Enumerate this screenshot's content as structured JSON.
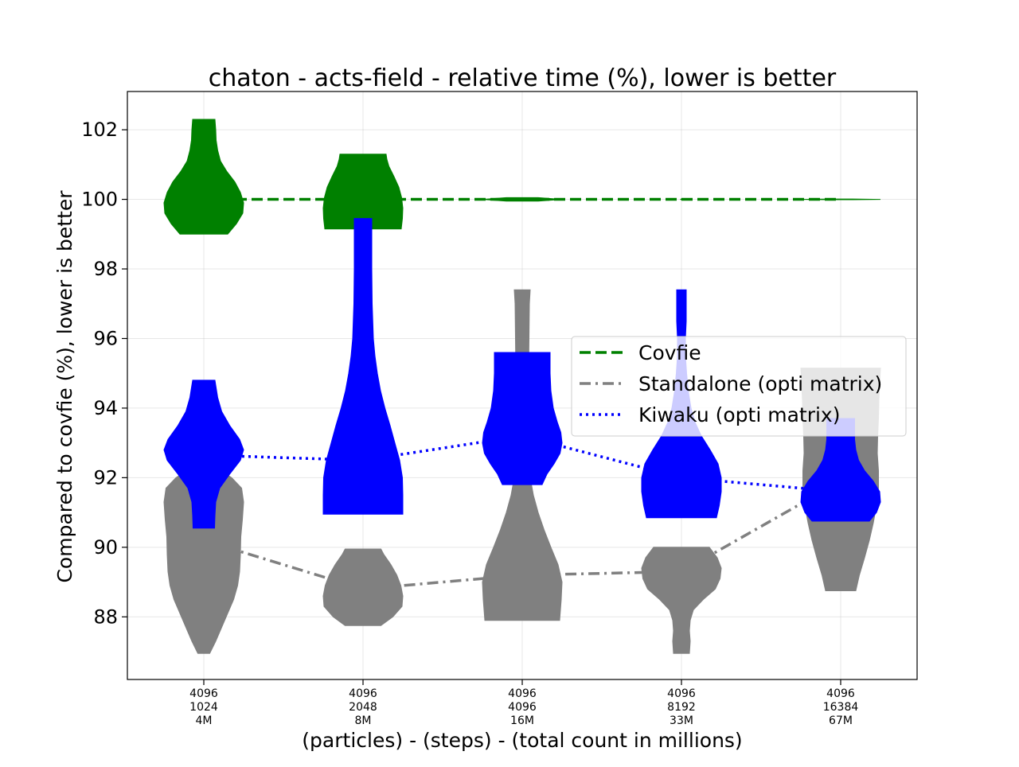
{
  "chart_data": {
    "type": "violin",
    "title": "chaton - acts-field - relative time (%), lower is better",
    "xlabel": "(particles) - (steps) - (total count in millions)",
    "ylabel": "Compared to covfie (%), lower is better",
    "ylim": [
      86.2,
      103.1
    ],
    "yticks": [
      88,
      90,
      92,
      94,
      96,
      98,
      100,
      102
    ],
    "grid": true,
    "legend_position": "center-right",
    "categories": [
      [
        "4096",
        "1024",
        "4M"
      ],
      [
        "4096",
        "2048",
        "8M"
      ],
      [
        "4096",
        "4096",
        "16M"
      ],
      [
        "4096",
        "8192",
        "33M"
      ],
      [
        "4096",
        "16384",
        "67M"
      ]
    ],
    "series": [
      {
        "name": "Covfie",
        "color": "#008000",
        "line_style": "dashed",
        "line_values": [
          100,
          100,
          100,
          100,
          100
        ],
        "violins": [
          {
            "min": 99.0,
            "max": 102.3,
            "profile": [
              [
                99.0,
                0.6
              ],
              [
                99.3,
                0.82
              ],
              [
                99.6,
                0.98
              ],
              [
                99.9,
                1.0
              ],
              [
                100.2,
                0.92
              ],
              [
                100.5,
                0.78
              ],
              [
                100.8,
                0.58
              ],
              [
                101.1,
                0.42
              ],
              [
                101.4,
                0.35
              ],
              [
                101.7,
                0.31
              ],
              [
                102.0,
                0.3
              ],
              [
                102.3,
                0.28
              ]
            ]
          },
          {
            "min": 99.15,
            "max": 101.3,
            "profile": [
              [
                99.15,
                0.96
              ],
              [
                99.45,
                0.99
              ],
              [
                99.75,
                1.0
              ],
              [
                100.05,
                0.97
              ],
              [
                100.35,
                0.9
              ],
              [
                100.65,
                0.78
              ],
              [
                100.95,
                0.65
              ],
              [
                101.15,
                0.6
              ],
              [
                101.3,
                0.58
              ]
            ]
          },
          {
            "min": 99.95,
            "max": 100.05,
            "profile": [
              [
                99.95,
                0.4
              ],
              [
                100.0,
                1.0
              ],
              [
                100.05,
                0.4
              ]
            ]
          },
          {
            "min": 99.99,
            "max": 100.01,
            "profile": [
              [
                99.99,
                0.01
              ],
              [
                100.0,
                0.02
              ],
              [
                100.01,
                0.01
              ]
            ]
          },
          {
            "min": 99.99,
            "max": 100.01,
            "profile": [
              [
                99.99,
                0.3
              ],
              [
                100.0,
                1.0
              ],
              [
                100.01,
                0.3
              ]
            ]
          }
        ]
      },
      {
        "name": "Standalone (opti matrix)",
        "color": "#808080",
        "line_style": "dashdot",
        "line_values": [
          90.2,
          88.8,
          89.2,
          89.3,
          91.9
        ],
        "violins": [
          {
            "min": 86.95,
            "max": 92.3,
            "profile": [
              [
                86.95,
                0.15
              ],
              [
                87.3,
                0.3
              ],
              [
                87.7,
                0.45
              ],
              [
                88.1,
                0.6
              ],
              [
                88.5,
                0.75
              ],
              [
                88.9,
                0.85
              ],
              [
                89.3,
                0.9
              ],
              [
                89.8,
                0.92
              ],
              [
                90.3,
                0.93
              ],
              [
                90.8,
                0.97
              ],
              [
                91.3,
                1.0
              ],
              [
                91.7,
                0.95
              ],
              [
                92.0,
                0.7
              ],
              [
                92.3,
                0.3
              ]
            ]
          },
          {
            "min": 87.75,
            "max": 89.95,
            "profile": [
              [
                87.75,
                0.45
              ],
              [
                88.0,
                0.75
              ],
              [
                88.3,
                0.98
              ],
              [
                88.6,
                1.0
              ],
              [
                88.9,
                0.95
              ],
              [
                89.2,
                0.85
              ],
              [
                89.5,
                0.7
              ],
              [
                89.8,
                0.52
              ],
              [
                89.95,
                0.45
              ]
            ]
          },
          {
            "min": 87.9,
            "max": 97.4,
            "profile": [
              [
                87.9,
                0.94
              ],
              [
                88.5,
                0.98
              ],
              [
                89.0,
                1.0
              ],
              [
                89.5,
                0.9
              ],
              [
                90.0,
                0.72
              ],
              [
                90.5,
                0.55
              ],
              [
                91.0,
                0.4
              ],
              [
                91.5,
                0.28
              ],
              [
                92.0,
                0.2
              ],
              [
                93.0,
                0.15
              ],
              [
                94.0,
                0.15
              ],
              [
                95.0,
                0.16
              ],
              [
                96.0,
                0.17
              ],
              [
                97.0,
                0.18
              ],
              [
                97.4,
                0.2
              ]
            ]
          },
          {
            "min": 86.95,
            "max": 90.0,
            "profile": [
              [
                86.95,
                0.2
              ],
              [
                87.3,
                0.22
              ],
              [
                87.6,
                0.2
              ],
              [
                87.9,
                0.22
              ],
              [
                88.2,
                0.3
              ],
              [
                88.5,
                0.55
              ],
              [
                88.8,
                0.85
              ],
              [
                89.1,
                0.97
              ],
              [
                89.4,
                1.0
              ],
              [
                89.7,
                0.9
              ],
              [
                90.0,
                0.7
              ]
            ]
          },
          {
            "min": 88.75,
            "max": 95.15,
            "profile": [
              [
                88.75,
                0.38
              ],
              [
                89.2,
                0.47
              ],
              [
                89.7,
                0.6
              ],
              [
                90.2,
                0.72
              ],
              [
                90.7,
                0.82
              ],
              [
                91.2,
                0.9
              ],
              [
                91.7,
                0.95
              ],
              [
                92.2,
                0.95
              ],
              [
                92.7,
                0.92
              ],
              [
                93.2,
                0.93
              ],
              [
                93.7,
                0.95
              ],
              [
                94.2,
                0.96
              ],
              [
                94.7,
                0.98
              ],
              [
                95.15,
                1.0
              ]
            ]
          }
        ]
      },
      {
        "name": "Kiwaku (opti matrix)",
        "color": "#0000ff",
        "line_style": "dotted",
        "line_values": [
          92.65,
          92.5,
          93.2,
          92.0,
          91.6
        ],
        "violins": [
          {
            "min": 90.55,
            "max": 94.8,
            "profile": [
              [
                90.55,
                0.27
              ],
              [
                90.9,
                0.28
              ],
              [
                91.3,
                0.3
              ],
              [
                91.7,
                0.4
              ],
              [
                92.1,
                0.65
              ],
              [
                92.5,
                0.92
              ],
              [
                92.8,
                1.0
              ],
              [
                93.1,
                0.9
              ],
              [
                93.5,
                0.65
              ],
              [
                93.9,
                0.45
              ],
              [
                94.3,
                0.35
              ],
              [
                94.8,
                0.28
              ]
            ]
          },
          {
            "min": 90.95,
            "max": 99.45,
            "profile": [
              [
                90.95,
                1.0
              ],
              [
                91.5,
                1.0
              ],
              [
                92.0,
                0.99
              ],
              [
                92.5,
                0.92
              ],
              [
                93.0,
                0.8
              ],
              [
                93.5,
                0.68
              ],
              [
                94.0,
                0.55
              ],
              [
                94.5,
                0.44
              ],
              [
                95.0,
                0.36
              ],
              [
                95.5,
                0.3
              ],
              [
                96.0,
                0.26
              ],
              [
                97.0,
                0.23
              ],
              [
                98.0,
                0.22
              ],
              [
                99.0,
                0.22
              ],
              [
                99.45,
                0.22
              ]
            ]
          },
          {
            "min": 91.8,
            "max": 95.6,
            "profile": [
              [
                91.8,
                0.5
              ],
              [
                92.1,
                0.62
              ],
              [
                92.4,
                0.8
              ],
              [
                92.7,
                0.95
              ],
              [
                93.0,
                1.0
              ],
              [
                93.3,
                0.97
              ],
              [
                93.6,
                0.88
              ],
              [
                94.0,
                0.78
              ],
              [
                94.5,
                0.72
              ],
              [
                95.0,
                0.7
              ],
              [
                95.6,
                0.7
              ]
            ]
          },
          {
            "min": 90.85,
            "max": 97.4,
            "profile": [
              [
                90.85,
                0.88
              ],
              [
                91.2,
                0.95
              ],
              [
                91.6,
                1.0
              ],
              [
                92.0,
                1.0
              ],
              [
                92.4,
                0.92
              ],
              [
                92.8,
                0.72
              ],
              [
                93.2,
                0.5
              ],
              [
                93.6,
                0.34
              ],
              [
                94.0,
                0.24
              ],
              [
                94.5,
                0.17
              ],
              [
                95.0,
                0.13
              ],
              [
                95.5,
                0.1
              ],
              [
                96.0,
                0.1
              ],
              [
                96.5,
                0.12
              ],
              [
                97.0,
                0.12
              ],
              [
                97.4,
                0.12
              ]
            ]
          },
          {
            "min": 90.75,
            "max": 93.7,
            "profile": [
              [
                90.75,
                0.72
              ],
              [
                91.0,
                0.9
              ],
              [
                91.3,
                1.0
              ],
              [
                91.6,
                0.98
              ],
              [
                91.9,
                0.82
              ],
              [
                92.2,
                0.6
              ],
              [
                92.5,
                0.45
              ],
              [
                92.8,
                0.38
              ],
              [
                93.1,
                0.35
              ],
              [
                93.4,
                0.35
              ],
              [
                93.7,
                0.35
              ]
            ]
          }
        ]
      }
    ]
  }
}
